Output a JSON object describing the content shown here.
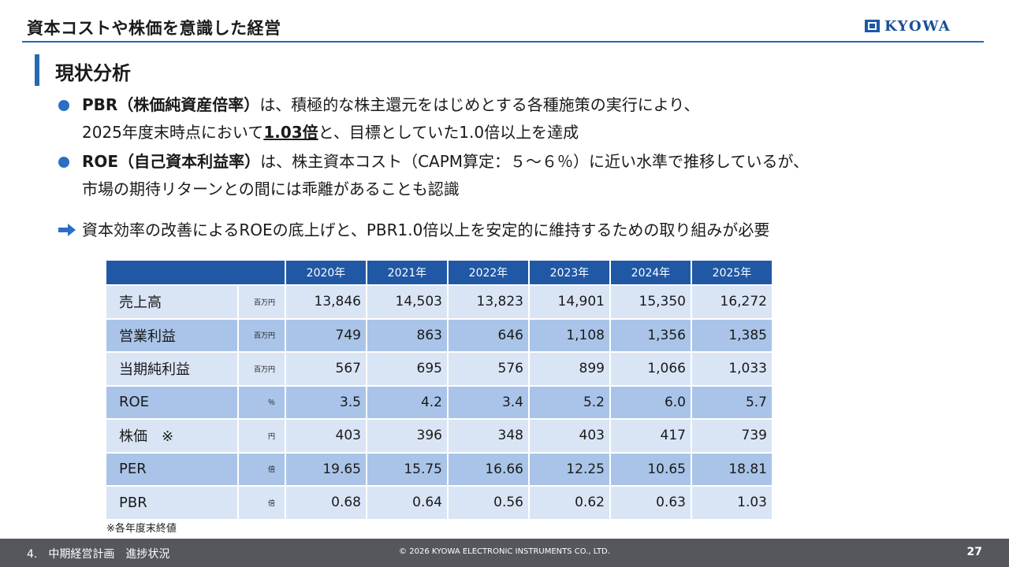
{
  "header": {
    "title": "資本コストや株価を意識した経営",
    "logo_text": "KYOWA"
  },
  "section": {
    "title": "現状分析"
  },
  "bullets": [
    {
      "term": "PBR",
      "paren": "（株価純資産倍率）",
      "line1_rest": "は、積極的な株主還元をはじめとする各種施策の実行により、",
      "line2_before": "2025年度末時点において",
      "line2_highlight": "1.03倍",
      "line2_after": "と、目標としていた1.0倍以上を達成"
    },
    {
      "term": "ROE",
      "paren": "（自己資本利益率）",
      "line1_rest": "は、株主資本コスト（CAPM算定：５～６％）に近い水準で推移しているが、",
      "line2": "市場の期待リターンとの間には乖離があることも認識"
    }
  ],
  "conclusion": "資本効率の改善によるROEの底上げと、PBR1.0倍以上を安定的に維持するための取り組みが必要",
  "table": {
    "years": [
      "2020年",
      "2021年",
      "2022年",
      "2023年",
      "2024年",
      "2025年"
    ],
    "rows": [
      {
        "label": "売上高",
        "unit": "百万円",
        "values": [
          "13,846",
          "14,503",
          "13,823",
          "14,901",
          "15,350",
          "16,272"
        ]
      },
      {
        "label": "営業利益",
        "unit": "百万円",
        "values": [
          "749",
          "863",
          "646",
          "1,108",
          "1,356",
          "1,385"
        ]
      },
      {
        "label": "当期純利益",
        "unit": "百万円",
        "values": [
          "567",
          "695",
          "576",
          "899",
          "1,066",
          "1,033"
        ]
      },
      {
        "label": "ROE",
        "unit": "％",
        "values": [
          "3.5",
          "4.2",
          "3.4",
          "5.2",
          "6.0",
          "5.7"
        ]
      },
      {
        "label": "株価　※",
        "unit": "円",
        "values": [
          "403",
          "396",
          "348",
          "403",
          "417",
          "739"
        ]
      },
      {
        "label": "PER",
        "unit": "倍",
        "values": [
          "19.65",
          "15.75",
          "16.66",
          "12.25",
          "10.65",
          "18.81"
        ]
      },
      {
        "label": "PBR",
        "unit": "倍",
        "values": [
          "0.68",
          "0.64",
          "0.56",
          "0.62",
          "0.63",
          "1.03"
        ]
      }
    ],
    "footnote": "※各年度末終値"
  },
  "footer": {
    "section": "4.　中期経営計画　進捗状況",
    "copyright": "© 2026 KYOWA ELECTRONIC INSTRUMENTS CO., LTD.",
    "page_number": "27"
  },
  "colors": {
    "accent_blue": "#2668b4",
    "table_header": "#2058a5",
    "row_light": "#d9e5f5",
    "row_mid": "#a9c4e8",
    "footer_bg": "#55575c"
  },
  "icons": [
    "kyowa-logo-icon",
    "bullet-dot-icon",
    "right-arrow-icon"
  ]
}
